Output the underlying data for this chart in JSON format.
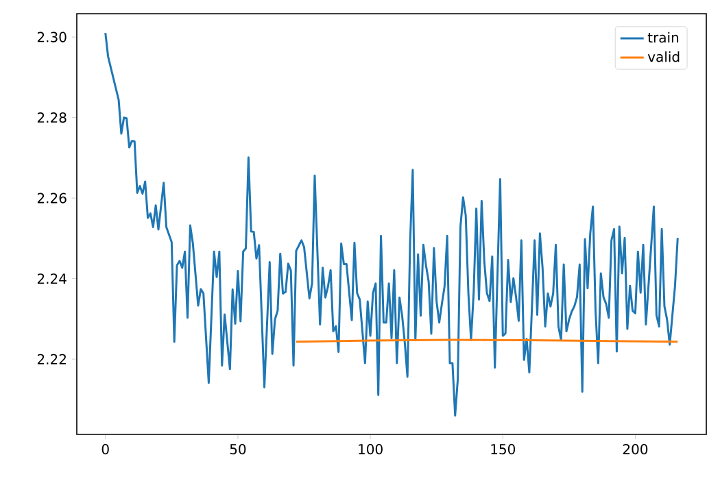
{
  "chart_data": {
    "type": "line",
    "legend": "top right",
    "xlim": [
      -10.8,
      226.8
    ],
    "ylim": [
      2.2013,
      2.3058
    ],
    "xticks": [
      0,
      50,
      100,
      150,
      200
    ],
    "yticks": [
      {
        "value": 2.22,
        "label": "2.22"
      },
      {
        "value": 2.24,
        "label": "2.24"
      },
      {
        "value": 2.26,
        "label": "2.26"
      },
      {
        "value": 2.28,
        "label": "2.28"
      },
      {
        "value": 2.3,
        "label": "2.30"
      }
    ],
    "series": [
      {
        "name": "train",
        "color": "#1f77b4",
        "x": [
          0,
          1,
          5,
          6,
          7,
          8,
          9,
          10,
          11,
          12,
          13,
          14,
          15,
          16,
          17,
          18,
          19,
          20,
          22,
          23,
          25,
          26,
          27,
          28,
          29,
          30,
          31,
          32,
          33,
          35,
          36,
          37,
          39,
          41,
          42,
          43,
          44,
          45,
          47,
          48,
          49,
          50,
          51,
          52,
          53,
          54,
          55,
          56,
          57,
          58,
          60,
          62,
          63,
          64,
          65,
          66,
          67,
          68,
          69,
          70,
          71,
          72,
          74,
          75,
          77,
          78,
          79,
          81,
          82,
          83,
          84,
          85,
          86,
          87,
          88,
          89,
          90,
          91,
          93,
          94,
          95,
          96,
          98,
          99,
          100,
          101,
          102,
          103,
          104,
          105,
          106,
          107,
          108,
          109,
          110,
          111,
          112,
          113,
          114,
          115,
          116,
          117,
          118,
          119,
          120,
          121,
          122,
          123,
          124,
          125,
          126,
          127,
          128,
          129,
          130,
          131,
          132,
          133,
          134,
          135,
          136,
          137,
          138,
          139,
          140,
          141,
          142,
          143,
          144,
          145,
          146,
          147,
          149,
          150,
          151,
          152,
          153,
          154,
          155,
          156,
          157,
          158,
          159,
          160,
          161,
          162,
          163,
          164,
          165,
          166,
          167,
          168,
          169,
          170,
          171,
          172,
          173,
          174,
          175,
          176,
          177,
          178,
          179,
          180,
          181,
          182,
          183,
          184,
          185,
          186,
          187,
          188,
          189,
          190,
          191,
          192,
          193,
          194,
          195,
          196,
          197,
          198,
          199,
          200,
          201,
          202,
          203,
          204,
          207,
          208,
          209,
          210,
          211,
          212,
          213,
          214,
          215,
          216
        ],
        "values": [
          2.301,
          2.2952,
          2.2844,
          2.276,
          2.28,
          2.2798,
          2.2726,
          2.2742,
          2.2741,
          2.2613,
          2.263,
          2.2611,
          2.2641,
          2.2551,
          2.2562,
          2.2528,
          2.2582,
          2.2522,
          2.2638,
          2.2528,
          2.2491,
          2.2243,
          2.2433,
          2.2444,
          2.2427,
          2.2467,
          2.2303,
          2.2532,
          2.2488,
          2.2333,
          2.2374,
          2.2363,
          2.2141,
          2.2467,
          2.2404,
          2.2467,
          2.2184,
          2.2311,
          2.2175,
          2.2373,
          2.2288,
          2.2419,
          2.2294,
          2.2467,
          2.2475,
          2.2701,
          2.2517,
          2.2516,
          2.245,
          2.2483,
          2.213,
          2.2441,
          2.2213,
          2.2299,
          2.232,
          2.2462,
          2.2363,
          2.2367,
          2.2437,
          2.242,
          2.2184,
          2.2469,
          2.2495,
          2.2478,
          2.2351,
          2.2388,
          2.2656,
          2.2286,
          2.2427,
          2.2353,
          2.238,
          2.2421,
          2.2269,
          2.2282,
          2.2218,
          2.2487,
          2.2436,
          2.2436,
          2.2297,
          2.2489,
          2.2364,
          2.2348,
          2.219,
          2.2343,
          2.2258,
          2.2364,
          2.2388,
          2.2111,
          2.2506,
          2.2291,
          2.2291,
          2.2388,
          2.2252,
          2.2421,
          2.219,
          2.2353,
          2.2308,
          2.2241,
          2.2156,
          2.2489,
          2.267,
          2.2247,
          2.246,
          2.2308,
          2.2484,
          2.2433,
          2.2393,
          2.2263,
          2.2476,
          2.2343,
          2.2291,
          2.2337,
          2.238,
          2.2506,
          2.219,
          2.219,
          2.206,
          2.215,
          2.2528,
          2.2602,
          2.2557,
          2.2364,
          2.2247,
          2.2366,
          2.2574,
          2.2348,
          2.2593,
          2.2444,
          2.2364,
          2.2344,
          2.2455,
          2.2179,
          2.2647,
          2.2258,
          2.2264,
          2.2446,
          2.2342,
          2.2401,
          2.2354,
          2.2295,
          2.2495,
          2.2198,
          2.225,
          2.2167,
          2.233,
          2.2495,
          2.231,
          2.2512,
          2.2427,
          2.2281,
          2.2363,
          2.2331,
          2.2363,
          2.2484,
          2.2281,
          2.2247,
          2.2435,
          2.2269,
          2.2298,
          2.2318,
          2.2331,
          2.2354,
          2.2435,
          2.2119,
          2.2498,
          2.2376,
          2.2512,
          2.2579,
          2.232,
          2.219,
          2.2413,
          2.2354,
          2.2337,
          2.2303,
          2.2495,
          2.2523,
          2.2219,
          2.2529,
          2.2413,
          2.2501,
          2.2275,
          2.2382,
          2.232,
          2.2314,
          2.2467,
          2.2365,
          2.2484,
          2.2286,
          2.2579,
          2.2309,
          2.2281,
          2.2523,
          2.2331,
          2.2298,
          2.2236,
          2.2309,
          2.2382,
          2.2501
        ]
      },
      {
        "name": "valid",
        "color": "#ff7f0e",
        "x": [
          72,
          100,
          130,
          160,
          190,
          216
        ],
        "values": [
          2.2243,
          2.2246,
          2.2248,
          2.2247,
          2.2245,
          2.2243
        ]
      }
    ]
  }
}
